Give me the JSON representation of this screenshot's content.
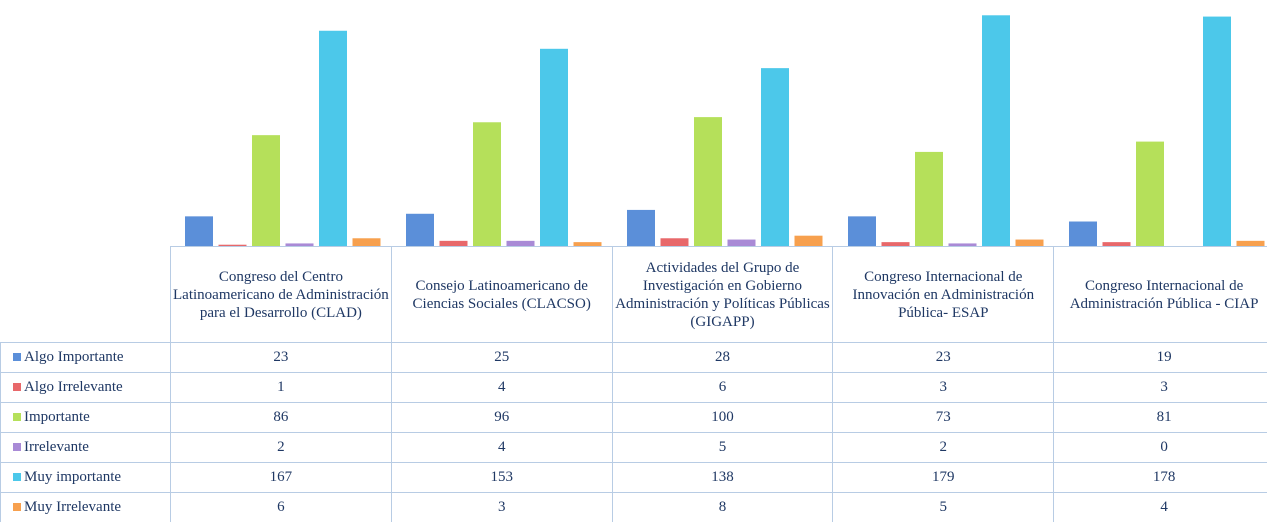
{
  "chart_data": {
    "type": "bar",
    "categories": [
      "Congreso del Centro Latinoamericano de Administración para el Desarrollo (CLAD)",
      "Consejo Latinoamericano de Ciencias Sociales (CLACSO)",
      "Actividades del Grupo de Investigación en Gobierno Administración y Políticas Públicas (GIGAPP)",
      "Congreso Internacional de Innovación en Administración Pública- ESAP",
      "Congreso Internacional de Administración Pública - CIAP"
    ],
    "series": [
      {
        "name": "Algo Importante",
        "color": "#5b8fd9",
        "values": [
          23,
          25,
          28,
          23,
          19
        ]
      },
      {
        "name": "Algo Irrelevante",
        "color": "#e8686a",
        "values": [
          1,
          4,
          6,
          3,
          3
        ]
      },
      {
        "name": "Importante",
        "color": "#b5e05a",
        "values": [
          86,
          96,
          100,
          73,
          81
        ]
      },
      {
        "name": "Irrelevante",
        "color": "#a98ad6",
        "values": [
          2,
          4,
          5,
          2,
          0
        ]
      },
      {
        "name": "Muy importante",
        "color": "#4cc8ea",
        "values": [
          167,
          153,
          138,
          179,
          178
        ]
      },
      {
        "name": "Muy Irrelevante",
        "color": "#f7a04e",
        "values": [
          6,
          3,
          8,
          5,
          4
        ]
      }
    ],
    "ylim": [
      0,
      180
    ]
  }
}
